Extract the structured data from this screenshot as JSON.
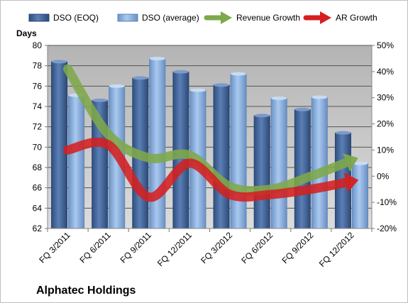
{
  "chart_data": {
    "type": "bar",
    "company": "Alphatec Holdings",
    "ylabel": "Days",
    "categories": [
      "FQ 3/2011",
      "FQ 6/2011",
      "FQ 9/2011",
      "FQ 12/2011",
      "FQ 3/2012",
      "FQ 6/2012",
      "FQ 9/2012",
      "FQ 12/2012"
    ],
    "ylim": [
      62,
      80
    ],
    "yticks": [
      "62",
      "64",
      "66",
      "68",
      "70",
      "72",
      "74",
      "76",
      "78",
      "80"
    ],
    "y2lim": [
      -20,
      50
    ],
    "y2ticks": [
      "-20%",
      "-10%",
      "0%",
      "10%",
      "20%",
      "30%",
      "40%",
      "50%"
    ],
    "grid": true,
    "legend_position": "top",
    "series": [
      {
        "name": "DSO (EOQ)",
        "kind": "bar",
        "color": "#4a6da3",
        "values": [
          78.4,
          74.6,
          76.8,
          77.4,
          76.1,
          73.1,
          73.7,
          71.4
        ]
      },
      {
        "name": "DSO (average)",
        "kind": "bar",
        "color": "#8fb4df",
        "values": [
          75.1,
          76.0,
          78.7,
          75.6,
          77.2,
          74.8,
          74.9,
          68.4
        ]
      },
      {
        "name": "Revenue Growth",
        "kind": "line",
        "axis": "right",
        "color": "#7ea84a",
        "values": [
          41,
          16,
          7,
          8,
          -4,
          -5,
          0,
          6
        ]
      },
      {
        "name": "AR Growth",
        "kind": "line",
        "axis": "right",
        "color": "#d42020",
        "values": [
          10,
          12,
          -8,
          5,
          -7,
          -7,
          -5,
          -2
        ]
      }
    ]
  }
}
